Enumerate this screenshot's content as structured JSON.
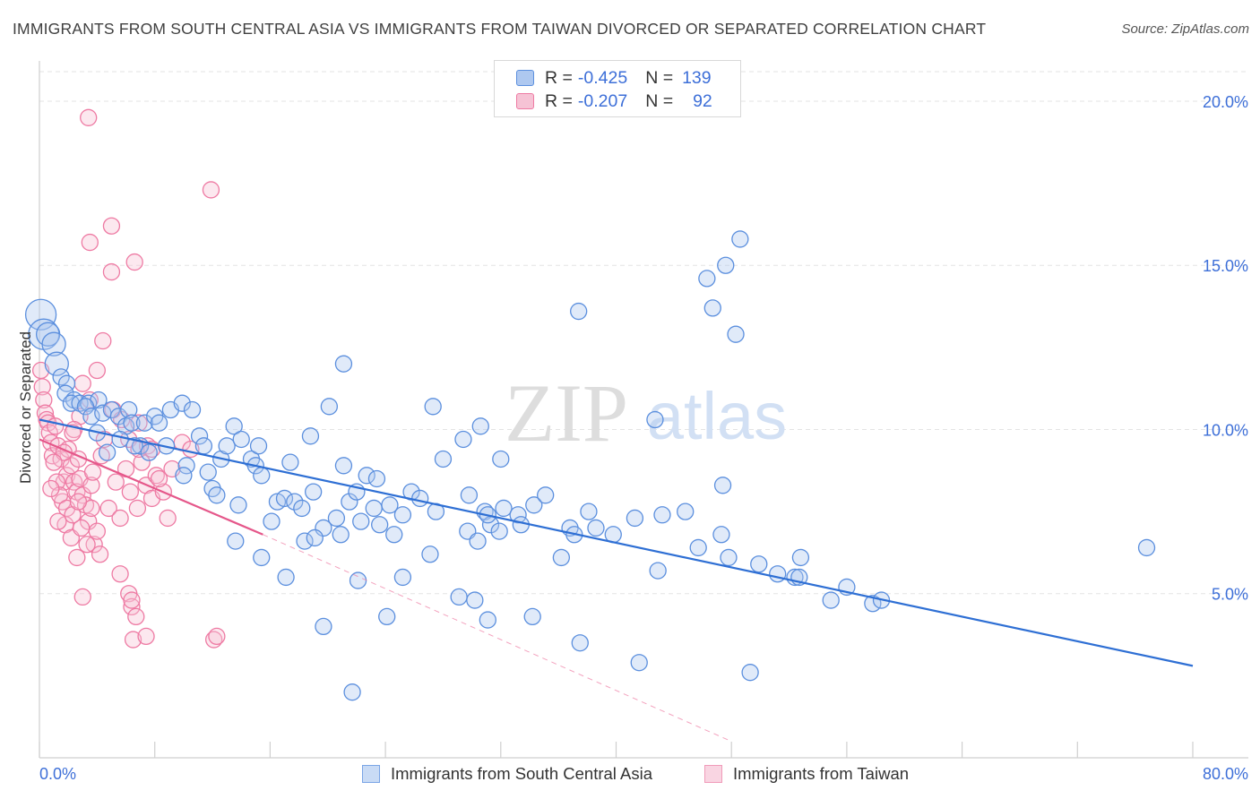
{
  "header": {
    "title": "IMMIGRANTS FROM SOUTH CENTRAL ASIA VS IMMIGRANTS FROM TAIWAN DIVORCED OR SEPARATED CORRELATION CHART",
    "source": "Source: ZipAtlas.com"
  },
  "watermark": {
    "zip": "ZIP",
    "atlas": "atlas"
  },
  "legend": {
    "row1": {
      "r_label": "R =",
      "r_value": "-0.425",
      "n_label": "N =",
      "n_value": "139"
    },
    "row2": {
      "r_label": "R =",
      "r_value": "-0.207",
      "n_label": "N =",
      "n_value": "92"
    }
  },
  "colors": {
    "blue": "#5b8fde",
    "blue_fill": "#aec8f0",
    "blue_line": "#2e6fd4",
    "pink": "#ee7aa3",
    "pink_fill": "#f6c3d5",
    "pink_line": "#e5578a",
    "axis_text": "#3d6fd8"
  },
  "chart_data": {
    "type": "scatter",
    "title": "IMMIGRANTS FROM SOUTH CENTRAL ASIA VS IMMIGRANTS FROM TAIWAN DIVORCED OR SEPARATED CORRELATION CHART",
    "xlabel": "",
    "ylabel": "Divorced or Separated",
    "xlim": [
      0,
      80
    ],
    "ylim": [
      0,
      20.9
    ],
    "x_tick_labels": [
      "0.0%",
      "80.0%"
    ],
    "y_ticks": [
      5,
      10,
      15,
      20
    ],
    "y_tick_labels": [
      "5.0%",
      "10.0%",
      "15.0%",
      "20.0%"
    ],
    "grid": true,
    "legend_position": "top-center",
    "series": [
      {
        "name": "Immigrants from South Central Asia",
        "color": "#5b8fde",
        "trend": {
          "x": [
            0,
            80
          ],
          "y": [
            10.3,
            2.8
          ]
        },
        "points": [
          [
            0.1,
            13.5
          ],
          [
            0.3,
            12.9
          ],
          [
            0.6,
            12.9
          ],
          [
            1.0,
            12.6
          ],
          [
            1.2,
            12.0
          ],
          [
            1.5,
            11.6
          ],
          [
            1.9,
            11.4
          ],
          [
            1.8,
            11.1
          ],
          [
            2.4,
            10.9
          ],
          [
            2.2,
            10.8
          ],
          [
            2.8,
            10.8
          ],
          [
            3.4,
            10.8
          ],
          [
            4.1,
            10.9
          ],
          [
            3.2,
            10.7
          ],
          [
            3.6,
            10.4
          ],
          [
            4.4,
            10.5
          ],
          [
            5.0,
            10.6
          ],
          [
            5.5,
            10.4
          ],
          [
            6.0,
            10.1
          ],
          [
            6.2,
            10.6
          ],
          [
            6.4,
            10.2
          ],
          [
            7.3,
            10.2
          ],
          [
            7.0,
            9.5
          ],
          [
            4.0,
            9.9
          ],
          [
            4.7,
            9.3
          ],
          [
            5.6,
            9.7
          ],
          [
            8.0,
            10.4
          ],
          [
            8.3,
            10.2
          ],
          [
            9.1,
            10.6
          ],
          [
            9.9,
            10.8
          ],
          [
            10.6,
            10.6
          ],
          [
            11.1,
            9.8
          ],
          [
            11.4,
            9.5
          ],
          [
            7.6,
            9.3
          ],
          [
            6.6,
            9.5
          ],
          [
            8.8,
            9.5
          ],
          [
            10.2,
            8.9
          ],
          [
            10.0,
            8.6
          ],
          [
            11.7,
            8.7
          ],
          [
            12.0,
            8.2
          ],
          [
            12.6,
            9.1
          ],
          [
            13.0,
            9.5
          ],
          [
            13.5,
            10.1
          ],
          [
            14.0,
            9.7
          ],
          [
            14.7,
            9.1
          ],
          [
            15.2,
            9.5
          ],
          [
            15.0,
            8.9
          ],
          [
            15.4,
            8.6
          ],
          [
            12.3,
            8.0
          ],
          [
            13.8,
            7.7
          ],
          [
            16.1,
            7.2
          ],
          [
            16.5,
            7.8
          ],
          [
            17.0,
            7.9
          ],
          [
            17.7,
            7.8
          ],
          [
            18.2,
            7.6
          ],
          [
            17.4,
            9.0
          ],
          [
            18.8,
            9.8
          ],
          [
            19.0,
            8.1
          ],
          [
            18.4,
            6.6
          ],
          [
            19.7,
            7.0
          ],
          [
            19.1,
            6.7
          ],
          [
            20.6,
            7.3
          ],
          [
            21.1,
            8.9
          ],
          [
            21.5,
            7.8
          ],
          [
            20.9,
            6.8
          ],
          [
            22.3,
            7.2
          ],
          [
            22.0,
            8.1
          ],
          [
            22.7,
            8.6
          ],
          [
            23.2,
            7.6
          ],
          [
            24.3,
            7.7
          ],
          [
            23.6,
            7.1
          ],
          [
            24.6,
            6.8
          ],
          [
            25.2,
            7.4
          ],
          [
            25.8,
            8.1
          ],
          [
            26.4,
            7.9
          ],
          [
            27.1,
            6.2
          ],
          [
            27.5,
            7.5
          ],
          [
            28.0,
            9.1
          ],
          [
            29.1,
            4.9
          ],
          [
            29.7,
            6.9
          ],
          [
            30.2,
            4.8
          ],
          [
            30.9,
            7.5
          ],
          [
            31.3,
            7.1
          ],
          [
            32.2,
            7.6
          ],
          [
            32.0,
            9.1
          ],
          [
            33.2,
            7.4
          ],
          [
            33.4,
            7.1
          ],
          [
            34.3,
            7.7
          ],
          [
            35.1,
            8.0
          ],
          [
            36.8,
            7.0
          ],
          [
            38.1,
            7.5
          ],
          [
            38.6,
            7.0
          ],
          [
            39.8,
            6.8
          ],
          [
            41.3,
            7.3
          ],
          [
            43.2,
            7.4
          ],
          [
            44.8,
            7.5
          ],
          [
            42.9,
            5.7
          ],
          [
            45.7,
            6.4
          ],
          [
            47.3,
            6.8
          ],
          [
            47.8,
            6.1
          ],
          [
            52.8,
            6.1
          ],
          [
            49.9,
            5.9
          ],
          [
            51.2,
            5.6
          ],
          [
            52.4,
            5.5
          ],
          [
            54.9,
            4.8
          ],
          [
            52.7,
            5.5
          ],
          [
            56.0,
            5.2
          ],
          [
            57.8,
            4.7
          ],
          [
            58.4,
            4.8
          ],
          [
            13.6,
            6.6
          ],
          [
            15.4,
            6.1
          ],
          [
            17.1,
            5.5
          ],
          [
            22.1,
            5.4
          ],
          [
            24.1,
            4.3
          ],
          [
            30.4,
            6.6
          ],
          [
            31.1,
            4.2
          ],
          [
            34.2,
            4.3
          ],
          [
            37.5,
            3.5
          ],
          [
            41.6,
            2.9
          ],
          [
            49.3,
            2.6
          ],
          [
            21.1,
            12.0
          ],
          [
            20.1,
            10.7
          ],
          [
            23.4,
            8.5
          ],
          [
            25.2,
            5.5
          ],
          [
            27.3,
            10.7
          ],
          [
            30.6,
            10.1
          ],
          [
            36.2,
            6.1
          ],
          [
            37.1,
            6.8
          ],
          [
            29.4,
            9.7
          ],
          [
            31.1,
            7.4
          ],
          [
            19.7,
            4.0
          ],
          [
            21.7,
            2.0
          ],
          [
            29.8,
            8.0
          ],
          [
            47.4,
            8.3
          ],
          [
            76.8,
            6.4
          ],
          [
            31.9,
            6.9
          ],
          [
            48.3,
            12.9
          ],
          [
            46.3,
            14.6
          ],
          [
            47.6,
            15.0
          ],
          [
            48.6,
            15.8
          ],
          [
            46.7,
            13.7
          ],
          [
            37.4,
            13.6
          ],
          [
            42.7,
            10.3
          ]
        ]
      },
      {
        "name": "Immigrants from Taiwan",
        "color": "#ee7aa3",
        "trend": {
          "x": [
            0,
            15.5
          ],
          "y": [
            9.7,
            6.8
          ]
        },
        "trend_extension": {
          "x": [
            15.5,
            48
          ],
          "y": [
            6.8,
            0.5
          ]
        },
        "points": [
          [
            0.1,
            11.8
          ],
          [
            0.2,
            11.3
          ],
          [
            0.3,
            10.9
          ],
          [
            0.4,
            10.5
          ],
          [
            0.5,
            10.3
          ],
          [
            0.6,
            10.2
          ],
          [
            0.7,
            9.9
          ],
          [
            0.8,
            9.6
          ],
          [
            0.9,
            9.2
          ],
          [
            1.1,
            10.1
          ],
          [
            1.3,
            9.5
          ],
          [
            1.5,
            9.1
          ],
          [
            1.7,
            8.4
          ],
          [
            1.9,
            8.6
          ],
          [
            2.0,
            9.4
          ],
          [
            2.2,
            8.9
          ],
          [
            2.4,
            8.4
          ],
          [
            2.6,
            8.1
          ],
          [
            2.8,
            8.5
          ],
          [
            3.0,
            8.0
          ],
          [
            3.2,
            7.7
          ],
          [
            3.4,
            7.2
          ],
          [
            3.6,
            7.6
          ],
          [
            3.8,
            6.5
          ],
          [
            4.0,
            6.9
          ],
          [
            4.2,
            6.2
          ],
          [
            1.6,
            7.8
          ],
          [
            1.8,
            7.1
          ],
          [
            2.2,
            6.7
          ],
          [
            2.6,
            6.1
          ],
          [
            2.9,
            7.0
          ],
          [
            3.3,
            6.5
          ],
          [
            1.2,
            8.4
          ],
          [
            1.4,
            8.0
          ],
          [
            1.9,
            7.6
          ],
          [
            2.3,
            7.4
          ],
          [
            2.7,
            7.8
          ],
          [
            3.6,
            8.3
          ],
          [
            4.3,
            9.2
          ],
          [
            4.8,
            7.6
          ],
          [
            5.3,
            8.4
          ],
          [
            5.6,
            7.3
          ],
          [
            6.0,
            8.8
          ],
          [
            6.3,
            8.1
          ],
          [
            6.8,
            7.6
          ],
          [
            7.1,
            9.0
          ],
          [
            7.4,
            8.3
          ],
          [
            7.8,
            7.9
          ],
          [
            8.1,
            8.6
          ],
          [
            8.6,
            8.1
          ],
          [
            8.9,
            7.3
          ],
          [
            9.2,
            8.8
          ],
          [
            5.6,
            5.6
          ],
          [
            6.2,
            5.0
          ],
          [
            6.4,
            4.6
          ],
          [
            6.7,
            4.3
          ],
          [
            6.5,
            3.6
          ],
          [
            7.4,
            3.7
          ],
          [
            12.1,
            3.6
          ],
          [
            12.3,
            3.7
          ],
          [
            3.0,
            4.9
          ],
          [
            6.4,
            4.8
          ],
          [
            4.0,
            11.8
          ],
          [
            5.1,
            10.6
          ],
          [
            4.4,
            12.7
          ],
          [
            5.7,
            10.3
          ],
          [
            6.2,
            9.7
          ],
          [
            6.9,
            9.4
          ],
          [
            7.5,
            9.5
          ],
          [
            8.3,
            8.5
          ],
          [
            3.0,
            11.4
          ],
          [
            3.5,
            10.9
          ],
          [
            2.8,
            10.4
          ],
          [
            2.4,
            10.0
          ],
          [
            1.7,
            9.3
          ],
          [
            1.0,
            9.0
          ],
          [
            0.8,
            8.2
          ],
          [
            1.3,
            7.2
          ],
          [
            5.0,
            16.2
          ],
          [
            3.5,
            15.7
          ],
          [
            5.0,
            14.8
          ],
          [
            6.6,
            15.1
          ],
          [
            11.9,
            17.3
          ],
          [
            3.4,
            19.5
          ],
          [
            2.3,
            9.9
          ],
          [
            2.7,
            9.1
          ],
          [
            3.7,
            8.7
          ],
          [
            4.5,
            9.7
          ],
          [
            6.9,
            10.2
          ],
          [
            7.8,
            9.4
          ],
          [
            9.9,
            9.6
          ],
          [
            10.5,
            9.4
          ]
        ]
      }
    ]
  },
  "bottom_legend": {
    "blue_label": "Immigrants from South Central Asia",
    "pink_label": "Immigrants from Taiwan"
  }
}
